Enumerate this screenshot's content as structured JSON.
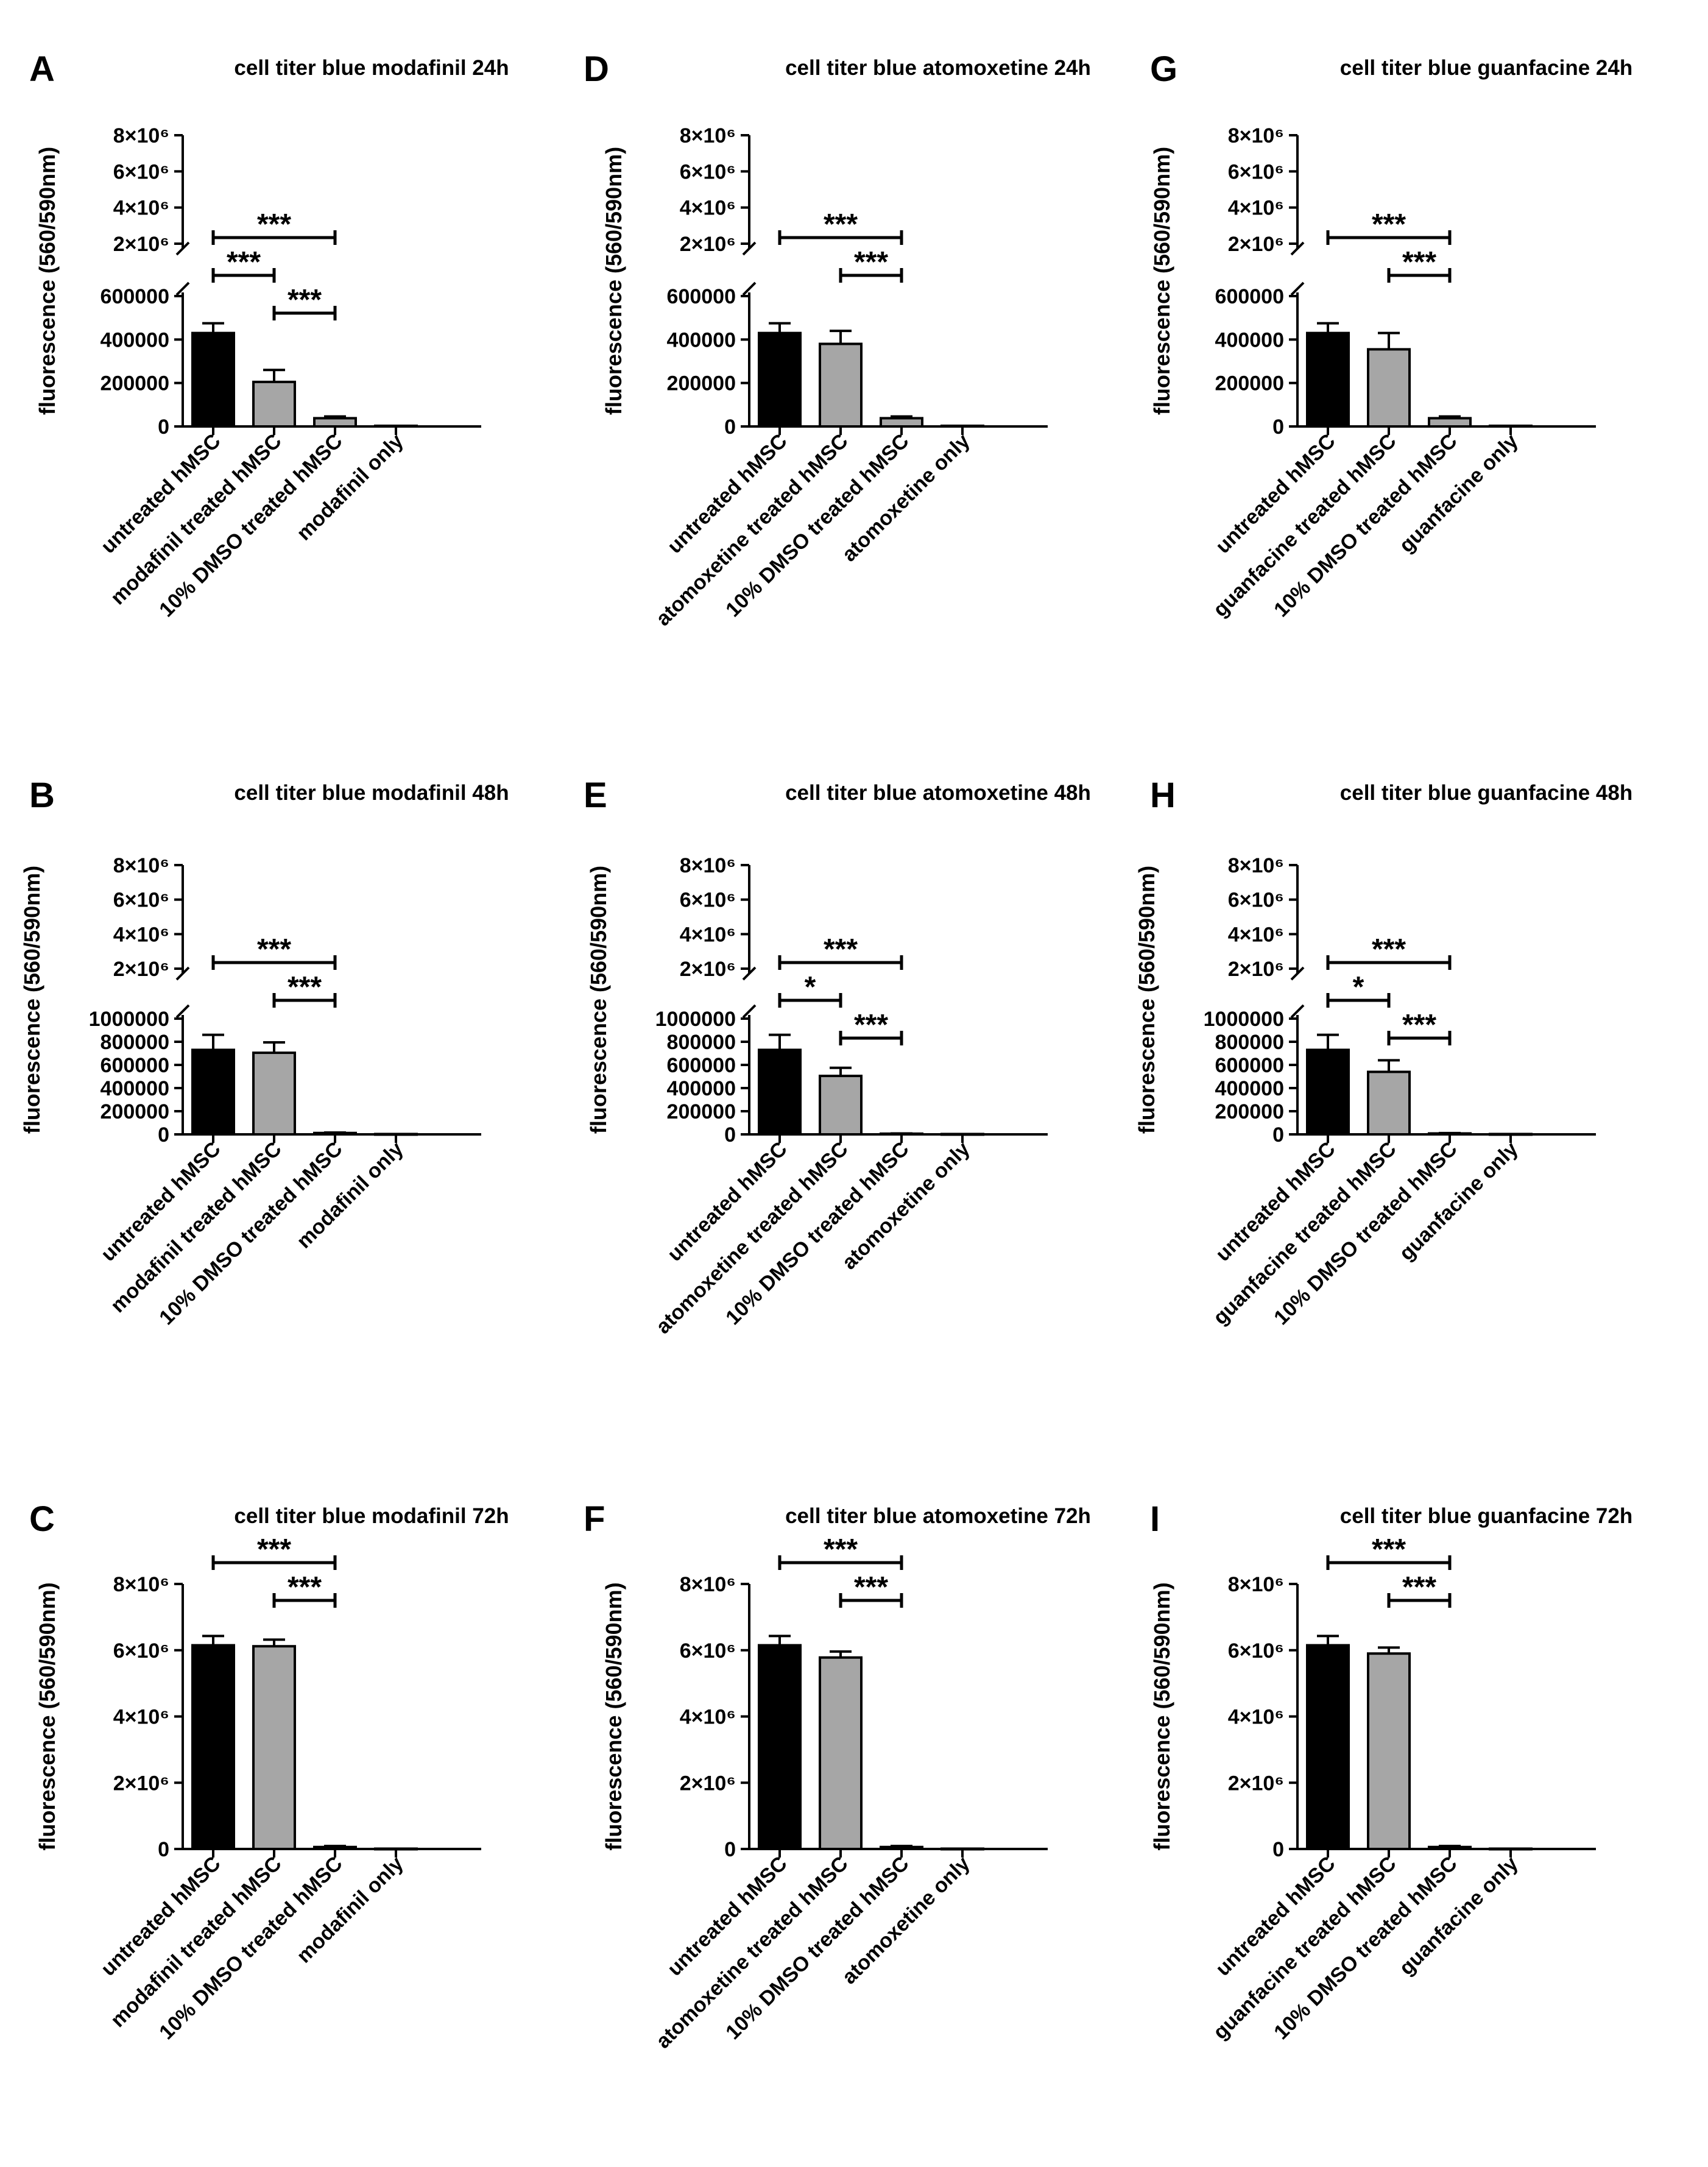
{
  "figure": {
    "colors": {
      "untreated": "#000000",
      "treated": "#a6a6a6",
      "axis": "#000000"
    },
    "y_axis_title": "fluorescence (560/590nm)"
  },
  "chart_data": [
    {
      "panel": "A",
      "type": "bar",
      "title": "cell titer blue modafinil 24h",
      "ylabel": "fluorescence (560/590nm)",
      "categories": [
        "untreated hMSC",
        "modafinil treated hMSC",
        "10% DMSO treated hMSC",
        "modafinil only"
      ],
      "values": [
        430000,
        205000,
        38000,
        3000
      ],
      "errors": [
        45000,
        55000,
        8000,
        0
      ],
      "broken_axis": true,
      "lower_range": [
        0,
        600000
      ],
      "lower_ticks": [
        "0",
        "200000",
        "400000",
        "600000"
      ],
      "upper_ticks": [
        "2×10⁶",
        "4×10⁶",
        "6×10⁶",
        "8×10⁶"
      ],
      "significance": [
        {
          "from": 0,
          "to": 2,
          "label": "***"
        },
        {
          "from": 0,
          "to": 1,
          "label": "***"
        },
        {
          "from": 1,
          "to": 2,
          "label": "***"
        }
      ]
    },
    {
      "panel": "D",
      "type": "bar",
      "title": "cell titer blue atomoxetine 24h",
      "ylabel": "fluorescence (560/590nm)",
      "categories": [
        "untreated hMSC",
        "atomoxetine treated hMSC",
        "10% DMSO treated hMSC",
        "atomoxetine only"
      ],
      "values": [
        430000,
        380000,
        38000,
        3000
      ],
      "errors": [
        45000,
        60000,
        8000,
        0
      ],
      "broken_axis": true,
      "lower_range": [
        0,
        600000
      ],
      "lower_ticks": [
        "0",
        "200000",
        "400000",
        "600000"
      ],
      "upper_ticks": [
        "2×10⁶",
        "4×10⁶",
        "6×10⁶",
        "8×10⁶"
      ],
      "significance": [
        {
          "from": 0,
          "to": 2,
          "label": "***"
        },
        {
          "from": 1,
          "to": 2,
          "label": "***"
        }
      ]
    },
    {
      "panel": "G",
      "type": "bar",
      "title": "cell titer blue guanfacine 24h",
      "ylabel": "fluorescence (560/590nm)",
      "categories": [
        "untreated hMSC",
        "guanfacine treated hMSC",
        "10% DMSO treated hMSC",
        "guanfacine only"
      ],
      "values": [
        430000,
        355000,
        38000,
        3000
      ],
      "errors": [
        45000,
        75000,
        8000,
        0
      ],
      "broken_axis": true,
      "lower_range": [
        0,
        600000
      ],
      "lower_ticks": [
        "0",
        "200000",
        "400000",
        "600000"
      ],
      "upper_ticks": [
        "2×10⁶",
        "4×10⁶",
        "6×10⁶",
        "8×10⁶"
      ],
      "significance": [
        {
          "from": 0,
          "to": 2,
          "label": "***"
        },
        {
          "from": 1,
          "to": 2,
          "label": "***"
        }
      ]
    },
    {
      "panel": "B",
      "type": "bar",
      "title": "cell titer blue modafinil 48h",
      "ylabel": "fluorescence (560/590nm)",
      "categories": [
        "untreated hMSC",
        "modafinil treated hMSC",
        "10% DMSO treated hMSC",
        "modafinil only"
      ],
      "values": [
        730000,
        705000,
        12000,
        3000
      ],
      "errors": [
        130000,
        90000,
        4000,
        0
      ],
      "broken_axis": true,
      "lower_range": [
        0,
        1000000
      ],
      "lower_ticks": [
        "0",
        "200000",
        "400000",
        "600000",
        "800000",
        "1000000"
      ],
      "upper_ticks": [
        "2×10⁶",
        "4×10⁶",
        "6×10⁶",
        "8×10⁶"
      ],
      "significance": [
        {
          "from": 0,
          "to": 2,
          "label": "***"
        },
        {
          "from": 1,
          "to": 2,
          "label": "***"
        }
      ]
    },
    {
      "panel": "E",
      "type": "bar",
      "title": "cell titer blue atomoxetine 48h",
      "ylabel": "fluorescence (560/590nm)",
      "categories": [
        "untreated hMSC",
        "atomoxetine treated hMSC",
        "10% DMSO treated hMSC",
        "atomoxetine only"
      ],
      "values": [
        730000,
        505000,
        6000,
        3000
      ],
      "errors": [
        130000,
        70000,
        2000,
        0
      ],
      "broken_axis": true,
      "lower_range": [
        0,
        1000000
      ],
      "lower_ticks": [
        "0",
        "200000",
        "400000",
        "600000",
        "800000",
        "1000000"
      ],
      "upper_ticks": [
        "2×10⁶",
        "4×10⁶",
        "6×10⁶",
        "8×10⁶"
      ],
      "significance": [
        {
          "from": 0,
          "to": 2,
          "label": "***"
        },
        {
          "from": 0,
          "to": 1,
          "label": "*"
        },
        {
          "from": 1,
          "to": 2,
          "label": "***"
        }
      ]
    },
    {
      "panel": "H",
      "type": "bar",
      "title": "cell titer blue guanfacine 48h",
      "ylabel": "fluorescence (560/590nm)",
      "categories": [
        "untreated hMSC",
        "guanfacine treated hMSC",
        "10% DMSO treated hMSC",
        "guanfacine only"
      ],
      "values": [
        730000,
        540000,
        8000,
        3000
      ],
      "errors": [
        130000,
        100000,
        3000,
        0
      ],
      "broken_axis": true,
      "lower_range": [
        0,
        1000000
      ],
      "lower_ticks": [
        "0",
        "200000",
        "400000",
        "600000",
        "800000",
        "1000000"
      ],
      "upper_ticks": [
        "2×10⁶",
        "4×10⁶",
        "6×10⁶",
        "8×10⁶"
      ],
      "significance": [
        {
          "from": 0,
          "to": 2,
          "label": "***"
        },
        {
          "from": 0,
          "to": 1,
          "label": "*"
        },
        {
          "from": 1,
          "to": 2,
          "label": "***"
        }
      ]
    },
    {
      "panel": "C",
      "type": "bar",
      "title": "cell titer blue modafinil 72h",
      "ylabel": "fluorescence (560/590nm)",
      "categories": [
        "untreated hMSC",
        "modafinil treated hMSC",
        "10% DMSO treated hMSC",
        "modafinil only"
      ],
      "values": [
        6150000,
        6120000,
        60000,
        10000
      ],
      "errors": [
        280000,
        200000,
        30000,
        0
      ],
      "broken_axis": false,
      "ylim": [
        0,
        8000000
      ],
      "ticks": [
        "0",
        "2×10⁶",
        "4×10⁶",
        "6×10⁶",
        "8×10⁶"
      ],
      "significance": [
        {
          "from": 0,
          "to": 2,
          "label": "***"
        },
        {
          "from": 1,
          "to": 2,
          "label": "***"
        }
      ]
    },
    {
      "panel": "F",
      "type": "bar",
      "title": "cell titer blue atomoxetine 72h",
      "ylabel": "fluorescence (560/590nm)",
      "categories": [
        "untreated hMSC",
        "atomoxetine treated hMSC",
        "10% DMSO treated hMSC",
        "atomoxetine only"
      ],
      "values": [
        6150000,
        5780000,
        60000,
        10000
      ],
      "errors": [
        280000,
        180000,
        30000,
        0
      ],
      "broken_axis": false,
      "ylim": [
        0,
        8000000
      ],
      "ticks": [
        "0",
        "2×10⁶",
        "4×10⁶",
        "6×10⁶",
        "8×10⁶"
      ],
      "significance": [
        {
          "from": 0,
          "to": 2,
          "label": "***"
        },
        {
          "from": 1,
          "to": 2,
          "label": "***"
        }
      ]
    },
    {
      "panel": "I",
      "type": "bar",
      "title": "cell titer blue guanfacine 72h",
      "ylabel": "fluorescence (560/590nm)",
      "categories": [
        "untreated hMSC",
        "guanfacine treated hMSC",
        "10% DMSO treated hMSC",
        "guanfacine only"
      ],
      "values": [
        6150000,
        5900000,
        60000,
        10000
      ],
      "errors": [
        280000,
        180000,
        30000,
        0
      ],
      "broken_axis": false,
      "ylim": [
        0,
        8000000
      ],
      "ticks": [
        "0",
        "2×10⁶",
        "4×10⁶",
        "6×10⁶",
        "8×10⁶"
      ],
      "significance": [
        {
          "from": 0,
          "to": 2,
          "label": "***"
        },
        {
          "from": 1,
          "to": 2,
          "label": "***"
        }
      ]
    }
  ]
}
